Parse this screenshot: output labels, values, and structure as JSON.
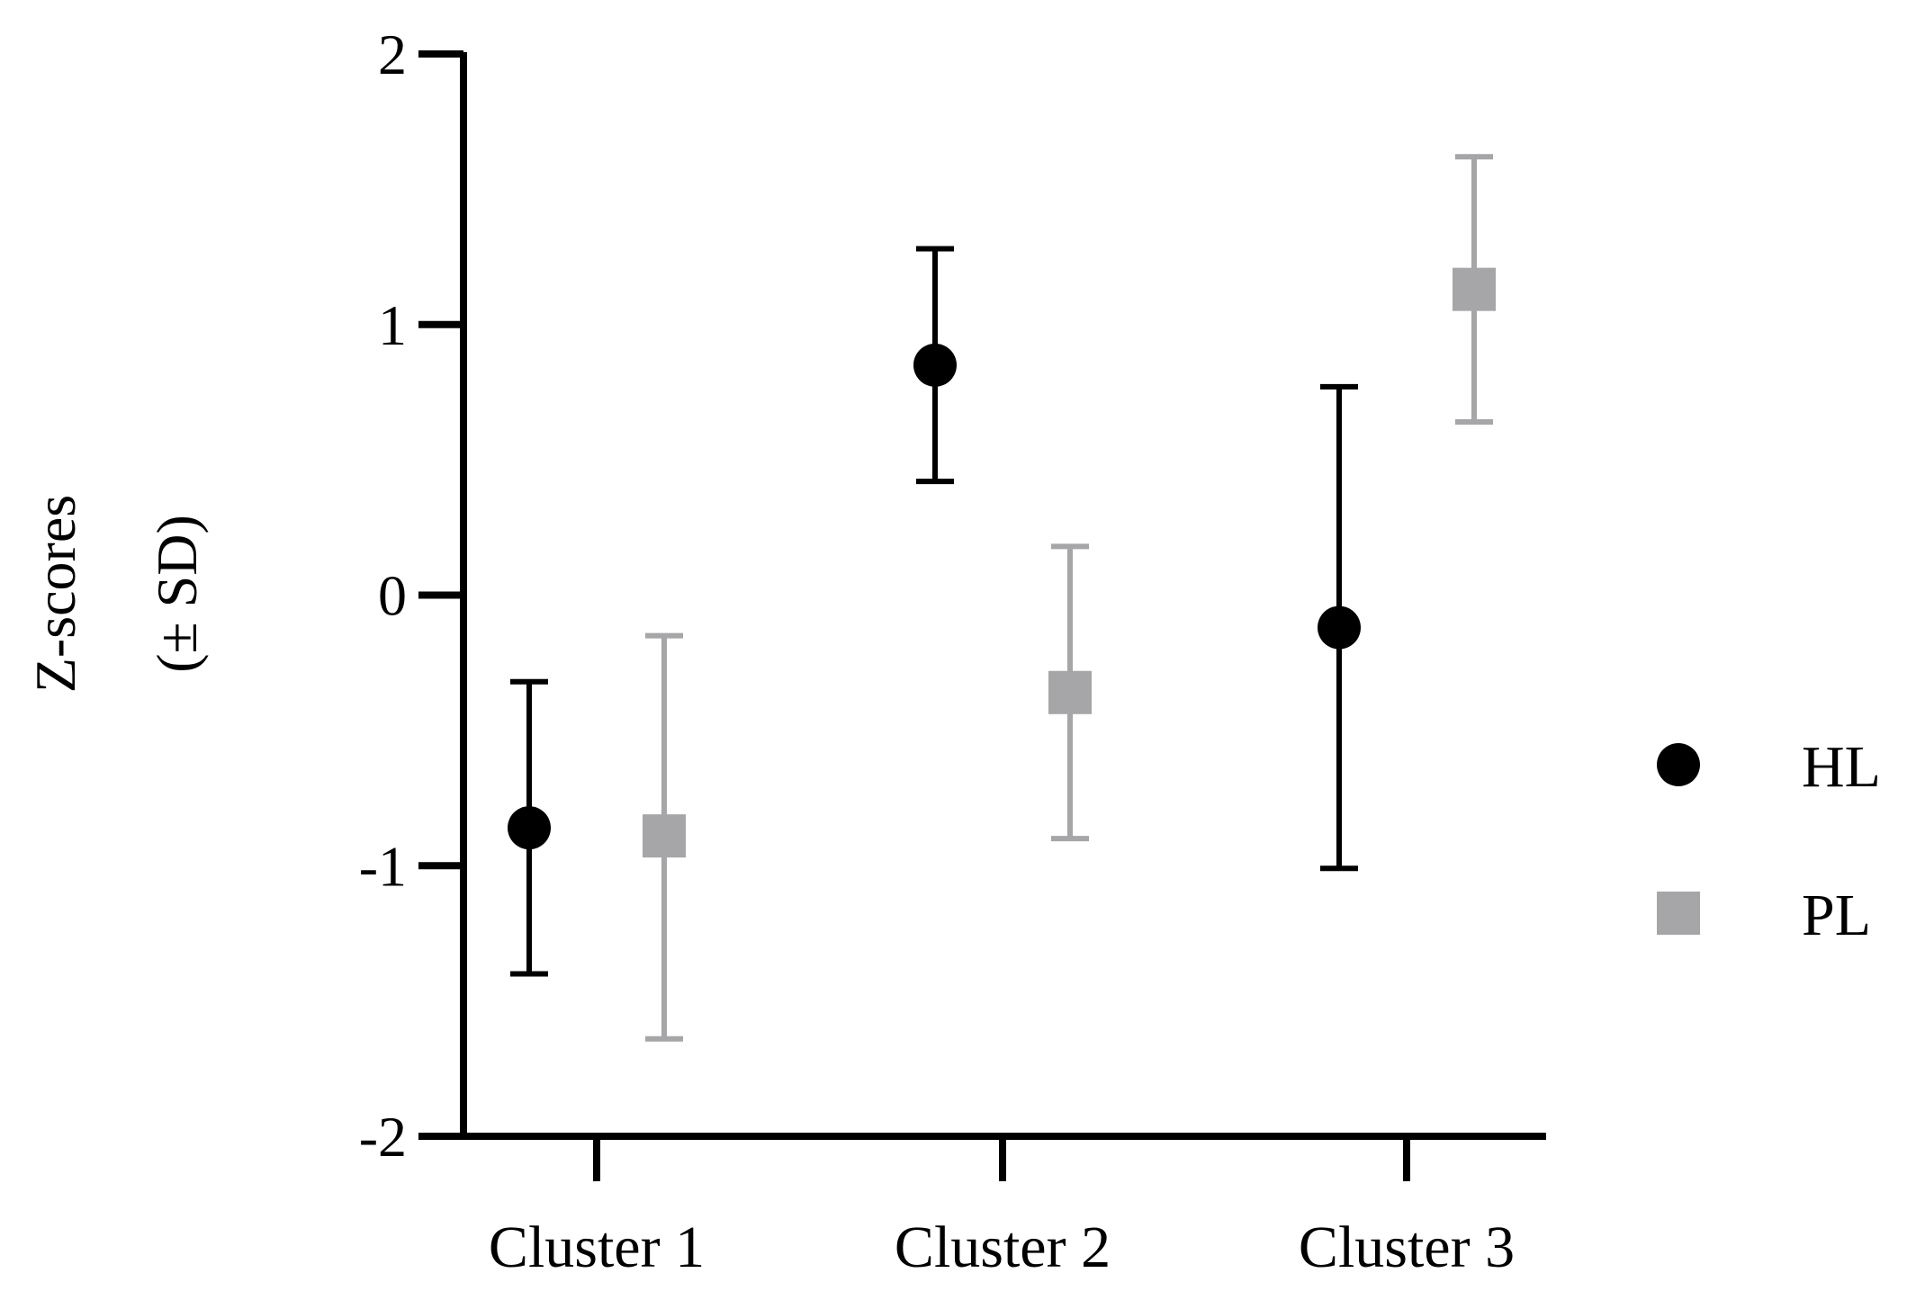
{
  "chart_data": {
    "type": "scatter",
    "ylabel_lines": [
      "Z-scores",
      "(± SD)"
    ],
    "categories": [
      "Cluster 1",
      "Cluster 2",
      "Cluster 3"
    ],
    "ylim": [
      -2,
      2
    ],
    "yticks": [
      -2,
      -1,
      0,
      1,
      2
    ],
    "ytick_labels": [
      "-2",
      "-1",
      "0",
      "1",
      "2"
    ],
    "grid": false,
    "legend_position": "right",
    "series": [
      {
        "name": "HL",
        "marker": "circle",
        "color": "#000000",
        "values": [
          -0.86,
          0.85,
          -0.12
        ],
        "err_low": [
          -1.4,
          0.42,
          -1.01
        ],
        "err_high": [
          -0.32,
          1.28,
          0.77
        ]
      },
      {
        "name": "PL",
        "marker": "square",
        "color": "#a6a6a8",
        "values": [
          -0.89,
          -0.36,
          1.13
        ],
        "err_low": [
          -1.64,
          -0.9,
          0.64
        ],
        "err_high": [
          -0.15,
          0.18,
          1.62
        ]
      }
    ]
  }
}
